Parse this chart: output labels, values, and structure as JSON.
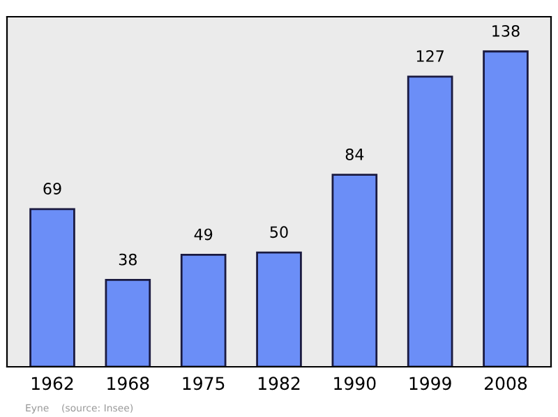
{
  "chart_data": {
    "type": "bar",
    "categories": [
      "1962",
      "1968",
      "1975",
      "1982",
      "1990",
      "1999",
      "2008"
    ],
    "values": [
      69,
      38,
      49,
      50,
      84,
      127,
      138
    ],
    "color": "#6b8ef7",
    "data_labels": true,
    "grid": false,
    "legend": false,
    "annotations": [
      "Eyne    (source: Insee)"
    ]
  }
}
